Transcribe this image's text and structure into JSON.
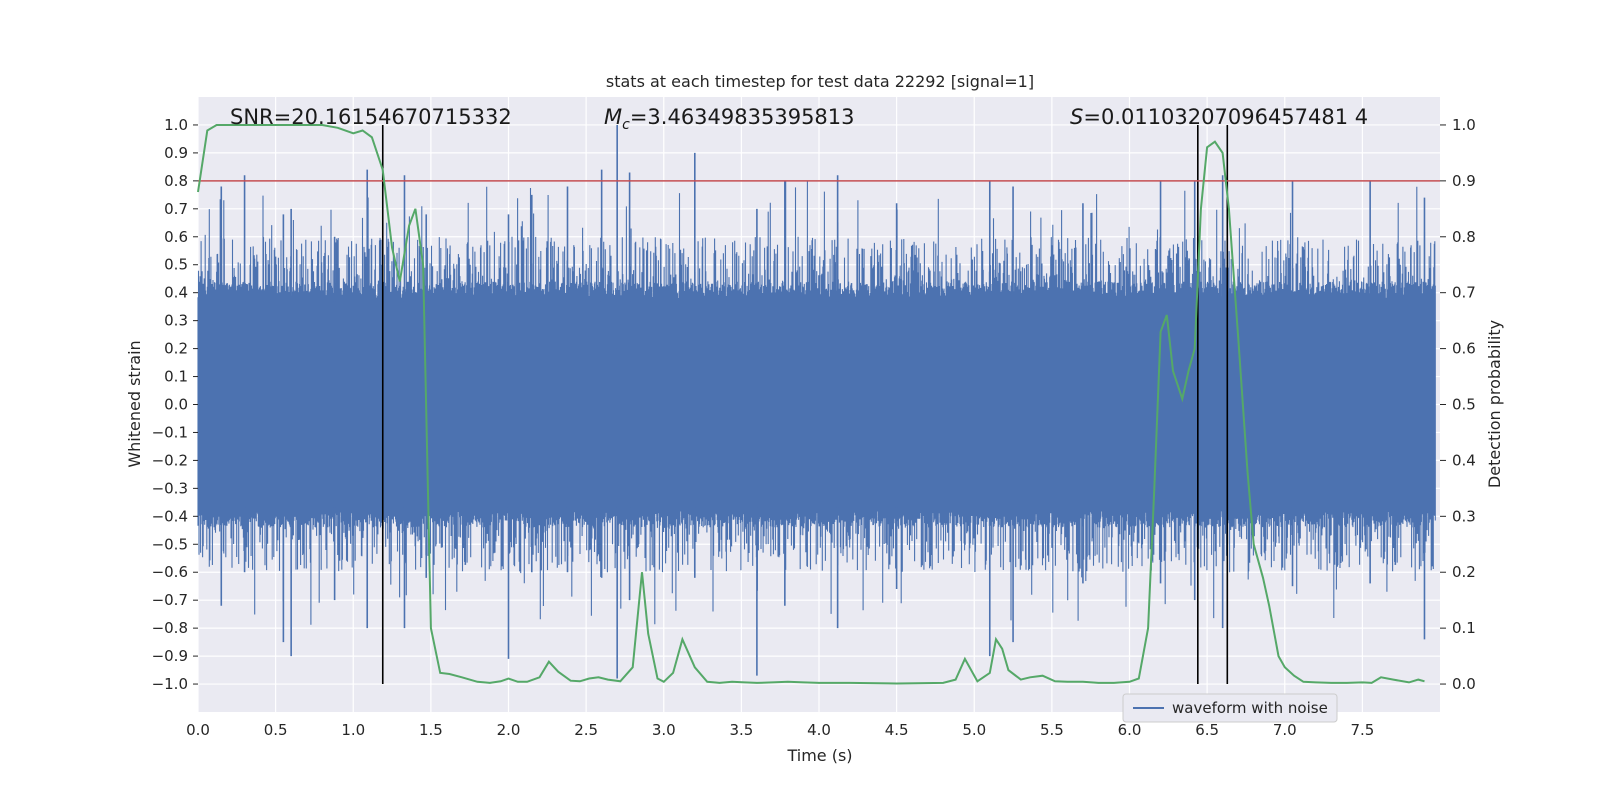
{
  "chart_data": {
    "type": "line",
    "title": "stats at each timestep for test data 22292 [signal=1]",
    "xlabel": "Time (s)",
    "ylabel": "Whitened strain",
    "y2label": "Detection probability",
    "xlim": [
      0.0,
      8.0
    ],
    "ylim": [
      -1.1,
      1.1
    ],
    "y2lim": [
      -0.05,
      1.05
    ],
    "xticks": [
      "0.0",
      "0.5",
      "1.0",
      "1.5",
      "2.0",
      "2.5",
      "3.0",
      "3.5",
      "4.0",
      "4.5",
      "5.0",
      "5.5",
      "6.0",
      "6.5",
      "7.0",
      "7.5"
    ],
    "yticks": [
      "1.0",
      "0.9",
      "0.8",
      "0.7",
      "0.6",
      "0.5",
      "0.4",
      "0.3",
      "0.2",
      "0.1",
      "0.0",
      "−0.1",
      "−0.2",
      "−0.3",
      "−0.4",
      "−0.5",
      "−0.6",
      "−0.7",
      "−0.8",
      "−0.9",
      "−1.0"
    ],
    "y2ticks": [
      "1.0",
      "0.9",
      "0.8",
      "0.7",
      "0.6",
      "0.5",
      "0.4",
      "0.3",
      "0.2",
      "0.1",
      "0.0"
    ],
    "annotations": {
      "snr": "SNR=20.16154670715332",
      "mc_symbol": "M",
      "mc_sub": "c",
      "mc_value": "=3.46349835395813",
      "s_symbol": "S",
      "s_value": "=0.01103207096457481 4"
    },
    "threshold": {
      "y2": 0.9,
      "color": "#c44e52"
    },
    "vertical_lines": [
      1.19,
      6.44,
      6.63
    ],
    "series": [
      {
        "name": "waveform with noise",
        "color": "#4c72b0",
        "description": "noisy whitened strain",
        "envelope": {
          "x": [
            0.0,
            8.0
          ],
          "typical_amplitude": 0.4
        },
        "peaks": [
          {
            "x": 0.15,
            "ymax": 0.78,
            "ymin": -0.72
          },
          {
            "x": 0.3,
            "ymax": 0.82,
            "ymin": -0.6
          },
          {
            "x": 0.55,
            "ymax": 0.68,
            "ymin": -0.85
          },
          {
            "x": 0.6,
            "ymax": 0.7,
            "ymin": -0.9
          },
          {
            "x": 0.88,
            "ymax": 0.6,
            "ymin": -0.7
          },
          {
            "x": 1.09,
            "ymax": 0.84,
            "ymin": -0.8
          },
          {
            "x": 1.33,
            "ymax": 0.82,
            "ymin": -0.8
          },
          {
            "x": 1.47,
            "ymax": 0.68,
            "ymin": -0.62
          },
          {
            "x": 2.0,
            "ymax": 0.68,
            "ymin": -0.91
          },
          {
            "x": 2.15,
            "ymax": 0.75,
            "ymin": -0.6
          },
          {
            "x": 2.38,
            "ymax": 0.78,
            "ymin": -0.6
          },
          {
            "x": 2.6,
            "ymax": 0.84,
            "ymin": -0.62
          },
          {
            "x": 2.7,
            "ymax": 1.0,
            "ymin": -0.98
          },
          {
            "x": 2.78,
            "ymax": 0.83,
            "ymin": -0.7
          },
          {
            "x": 3.2,
            "ymax": 0.9,
            "ymin": -0.62
          },
          {
            "x": 3.6,
            "ymax": 0.7,
            "ymin": -0.97
          },
          {
            "x": 3.78,
            "ymax": 0.8,
            "ymin": -0.72
          },
          {
            "x": 4.12,
            "ymax": 0.82,
            "ymin": -0.8
          },
          {
            "x": 4.5,
            "ymax": 0.72,
            "ymin": -0.66
          },
          {
            "x": 5.1,
            "ymax": 0.8,
            "ymin": -0.9
          },
          {
            "x": 5.25,
            "ymax": 0.78,
            "ymin": -0.85
          },
          {
            "x": 5.7,
            "ymax": 0.72,
            "ymin": -0.64
          },
          {
            "x": 6.2,
            "ymax": 0.8,
            "ymin": -0.64
          },
          {
            "x": 6.42,
            "ymax": 0.8,
            "ymin": -0.7
          },
          {
            "x": 6.6,
            "ymax": 0.82,
            "ymin": -0.8
          },
          {
            "x": 7.05,
            "ymax": 0.8,
            "ymin": -0.65
          },
          {
            "x": 7.55,
            "ymax": 0.8,
            "ymin": -0.64
          },
          {
            "x": 7.9,
            "ymax": 0.74,
            "ymin": -0.84
          }
        ]
      },
      {
        "name": "detection probability",
        "color": "#55a868",
        "axis": "y2",
        "x": [
          0.0,
          0.06,
          0.12,
          0.2,
          0.3,
          0.4,
          0.5,
          0.6,
          0.7,
          0.8,
          0.9,
          1.0,
          1.06,
          1.12,
          1.19,
          1.25,
          1.3,
          1.36,
          1.4,
          1.45,
          1.5,
          1.56,
          1.62,
          1.7,
          1.8,
          1.88,
          1.95,
          2.0,
          2.06,
          2.12,
          2.2,
          2.26,
          2.32,
          2.4,
          2.46,
          2.52,
          2.58,
          2.64,
          2.72,
          2.8,
          2.86,
          2.9,
          2.96,
          3.0,
          3.06,
          3.12,
          3.2,
          3.28,
          3.36,
          3.44,
          3.52,
          3.6,
          3.7,
          3.8,
          3.9,
          4.0,
          4.2,
          4.5,
          4.8,
          4.88,
          4.94,
          5.02,
          5.1,
          5.14,
          5.18,
          5.22,
          5.3,
          5.36,
          5.44,
          5.52,
          5.6,
          5.7,
          5.8,
          5.9,
          6.0,
          6.06,
          6.12,
          6.16,
          6.2,
          6.24,
          6.28,
          6.34,
          6.38,
          6.42,
          6.46,
          6.5,
          6.55,
          6.6,
          6.64,
          6.7,
          6.76,
          6.8,
          6.86,
          6.9,
          6.96,
          7.0,
          7.06,
          7.12,
          7.2,
          7.3,
          7.4,
          7.5,
          7.56,
          7.62,
          7.7,
          7.8,
          7.86,
          7.9
        ],
        "y": [
          0.88,
          0.99,
          1.0,
          1.0,
          1.0,
          1.0,
          1.0,
          1.0,
          1.0,
          1.0,
          0.995,
          0.985,
          0.99,
          0.978,
          0.92,
          0.78,
          0.72,
          0.82,
          0.85,
          0.75,
          0.1,
          0.02,
          0.018,
          0.012,
          0.004,
          0.002,
          0.005,
          0.01,
          0.004,
          0.004,
          0.012,
          0.04,
          0.022,
          0.006,
          0.005,
          0.01,
          0.012,
          0.008,
          0.005,
          0.03,
          0.2,
          0.09,
          0.01,
          0.004,
          0.02,
          0.08,
          0.03,
          0.004,
          0.002,
          0.004,
          0.003,
          0.002,
          0.003,
          0.004,
          0.003,
          0.002,
          0.002,
          0.001,
          0.002,
          0.008,
          0.045,
          0.005,
          0.02,
          0.08,
          0.063,
          0.025,
          0.008,
          0.012,
          0.015,
          0.005,
          0.004,
          0.004,
          0.002,
          0.002,
          0.004,
          0.01,
          0.1,
          0.35,
          0.63,
          0.66,
          0.56,
          0.51,
          0.56,
          0.6,
          0.85,
          0.96,
          0.97,
          0.95,
          0.85,
          0.62,
          0.38,
          0.25,
          0.19,
          0.14,
          0.05,
          0.03,
          0.015,
          0.004,
          0.003,
          0.002,
          0.002,
          0.003,
          0.002,
          0.012,
          0.008,
          0.003,
          0.008,
          0.005
        ]
      }
    ],
    "legend": {
      "label": "waveform with noise",
      "placement": "lower-right"
    }
  }
}
